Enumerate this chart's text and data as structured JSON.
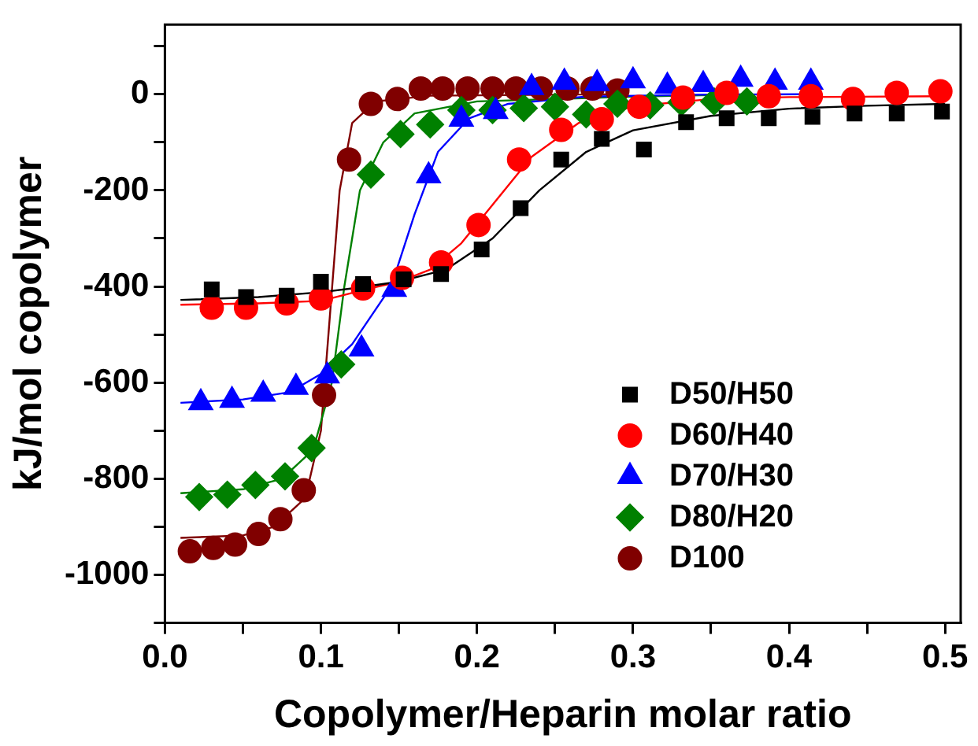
{
  "chart_data": {
    "type": "scatter",
    "xlabel": "Copolymer/Heparin molar ratio",
    "ylabel": "kJ/mol copolymer",
    "xlim": [
      0,
      0.51
    ],
    "ylim": [
      -1100,
      145
    ],
    "xticks": [
      {
        "value": 0,
        "label": "0.0"
      },
      {
        "value": 0.05,
        "label": null
      },
      {
        "value": 0.1,
        "label": "0.1"
      },
      {
        "value": 0.15,
        "label": null
      },
      {
        "value": 0.2,
        "label": "0.2"
      },
      {
        "value": 0.25,
        "label": null
      },
      {
        "value": 0.3,
        "label": "0.3"
      },
      {
        "value": 0.35,
        "label": null
      },
      {
        "value": 0.4,
        "label": "0.4"
      },
      {
        "value": 0.45,
        "label": null
      },
      {
        "value": 0.5,
        "label": "0.5"
      }
    ],
    "yticks": [
      {
        "value": -1100,
        "label": null
      },
      -1000,
      {
        "value": -900,
        "label": null
      },
      -800,
      {
        "value": -700,
        "label": null
      },
      -600,
      {
        "value": -500,
        "label": null
      },
      -400,
      {
        "value": -300,
        "label": null
      },
      -200,
      {
        "value": -100,
        "label": null
      },
      0,
      {
        "value": 100,
        "label": null
      }
    ],
    "grid": false,
    "legend": "bottom right",
    "series": [
      {
        "name": "D50/H50",
        "marker": "square",
        "color": "#000000",
        "x": [
          0.03,
          0.052,
          0.078,
          0.1,
          0.127,
          0.153,
          0.177,
          0.203,
          0.228,
          0.254,
          0.28,
          0.307,
          0.334,
          0.36,
          0.387,
          0.415,
          0.442,
          0.469,
          0.498
        ],
        "values": [
          -406,
          -422,
          -419,
          -390,
          -395,
          -385,
          -374,
          -323,
          -237,
          -136,
          -93,
          -115,
          -58,
          -50,
          -50,
          -47,
          -40,
          -40,
          -36
        ]
      },
      {
        "name": "D60/H40",
        "marker": "circle",
        "color": "#ff0000",
        "x": [
          0.03,
          0.052,
          0.078,
          0.1,
          0.127,
          0.152,
          0.177,
          0.201,
          0.227,
          0.254,
          0.28,
          0.304,
          0.332,
          0.36,
          0.387,
          0.414,
          0.441,
          0.469,
          0.497
        ],
        "values": [
          -444,
          -444,
          -435,
          -425,
          -404,
          -382,
          -350,
          -272,
          -136,
          -74,
          -52,
          -26,
          -7,
          3,
          -4,
          -4,
          -10,
          3,
          6
        ]
      },
      {
        "name": "D70/H30",
        "marker": "triangle",
        "color": "#0000ff",
        "x": [
          0.023,
          0.043,
          0.063,
          0.084,
          0.104,
          0.126,
          0.147,
          0.169,
          0.19,
          0.212,
          0.235,
          0.256,
          0.277,
          0.3,
          0.322,
          0.345,
          0.369,
          0.391,
          0.414
        ],
        "values": [
          -642,
          -637,
          -624,
          -610,
          -586,
          -530,
          -406,
          -170,
          -52,
          -36,
          14,
          25,
          22,
          28,
          17,
          20,
          31,
          25,
          25
        ]
      },
      {
        "name": "D80/H20",
        "marker": "diamond",
        "color": "#008000",
        "x": [
          0.022,
          0.04,
          0.058,
          0.077,
          0.094,
          0.113,
          0.132,
          0.151,
          0.17,
          0.19,
          0.21,
          0.23,
          0.25,
          0.27,
          0.29,
          0.311,
          0.331,
          0.352,
          0.373
        ],
        "values": [
          -838,
          -833,
          -813,
          -795,
          -736,
          -562,
          -167,
          -83,
          -63,
          -33,
          -33,
          -29,
          -26,
          -42,
          -20,
          -23,
          -17,
          -15,
          -15
        ]
      },
      {
        "name": "D100",
        "marker": "circle",
        "color": "#800000",
        "x": [
          0.016,
          0.031,
          0.045,
          0.06,
          0.074,
          0.089,
          0.102,
          0.118,
          0.132,
          0.149,
          0.164,
          0.178,
          0.194,
          0.21,
          0.225,
          0.241,
          0.258,
          0.274,
          0.29
        ],
        "values": [
          -951,
          -944,
          -937,
          -915,
          -884,
          -824,
          -626,
          -136,
          -20,
          -10,
          12,
          12,
          12,
          12,
          12,
          12,
          12,
          12,
          8
        ]
      },
      {
        "type": "line",
        "marker": "none",
        "color": "#000000",
        "x": [
          0.01,
          0.06,
          0.1,
          0.12,
          0.15,
          0.18,
          0.21,
          0.24,
          0.27,
          0.3,
          0.35,
          0.4,
          0.45,
          0.5
        ],
        "values": [
          -428,
          -422,
          -412,
          -404,
          -390,
          -365,
          -300,
          -200,
          -120,
          -75,
          -45,
          -30,
          -24,
          -20
        ]
      },
      {
        "type": "line",
        "marker": "none",
        "color": "#ff0000",
        "x": [
          0.01,
          0.06,
          0.1,
          0.13,
          0.15,
          0.17,
          0.19,
          0.21,
          0.235,
          0.265,
          0.3,
          0.35,
          0.4,
          0.5
        ],
        "values": [
          -438,
          -435,
          -430,
          -405,
          -390,
          -365,
          -310,
          -230,
          -130,
          -60,
          -25,
          -10,
          -6,
          -4
        ]
      },
      {
        "type": "line",
        "marker": "none",
        "color": "#0000ff",
        "x": [
          0.01,
          0.05,
          0.08,
          0.1,
          0.12,
          0.145,
          0.16,
          0.175,
          0.195,
          0.22,
          0.27,
          0.34,
          0.415
        ],
        "values": [
          -642,
          -635,
          -620,
          -582,
          -520,
          -400,
          -250,
          -120,
          -50,
          -20,
          -5,
          -1,
          0
        ]
      },
      {
        "type": "line",
        "marker": "none",
        "color": "#008000",
        "x": [
          0.01,
          0.05,
          0.075,
          0.095,
          0.107,
          0.115,
          0.125,
          0.14,
          0.16,
          0.2,
          0.3,
          0.375
        ],
        "values": [
          -830,
          -822,
          -800,
          -740,
          -600,
          -400,
          -200,
          -100,
          -40,
          -15,
          -5,
          0
        ]
      },
      {
        "type": "line",
        "marker": "none",
        "color": "#800000",
        "x": [
          0.01,
          0.05,
          0.07,
          0.09,
          0.1,
          0.106,
          0.112,
          0.12,
          0.135,
          0.17,
          0.29
        ],
        "values": [
          -923,
          -918,
          -900,
          -840,
          -700,
          -450,
          -200,
          -60,
          -15,
          -3,
          0
        ]
      }
    ]
  }
}
